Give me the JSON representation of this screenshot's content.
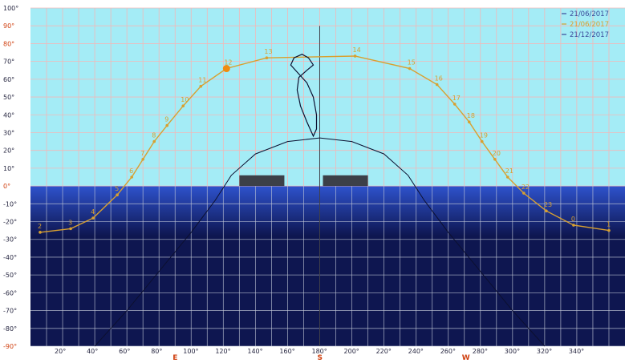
{
  "chart_data": {
    "type": "line",
    "title": "",
    "xlabel": "",
    "ylabel": "",
    "xlim": [
      0,
      370
    ],
    "ylim": [
      -90,
      100
    ],
    "x_ticks": [
      "20°",
      "40°",
      "60°",
      "80°",
      "100°",
      "120°",
      "140°",
      "160°",
      "180°",
      "200°",
      "220°",
      "240°",
      "260°",
      "280°",
      "300°",
      "320°",
      "340°"
    ],
    "y_ticks": [
      "100°",
      "90°",
      "80°",
      "70°",
      "60°",
      "50°",
      "40°",
      "30°",
      "20°",
      "10°",
      "0°",
      "-10°",
      "-20°",
      "-30°",
      "-40°",
      "-50°",
      "-60°",
      "-70°",
      "-80°",
      "-90°"
    ],
    "compass": [
      {
        "label": "E",
        "x": 90
      },
      {
        "label": "S",
        "x": 180
      },
      {
        "label": "W",
        "x": 270
      }
    ],
    "legend": {
      "placement": "top-right",
      "entries": [
        {
          "label": "21/06/2017",
          "color": "#3a4a9a"
        },
        {
          "label": "21/06/2017",
          "color": "#d8a030"
        },
        {
          "label": "21/12/2017",
          "color": "#3a4a9a"
        }
      ]
    },
    "colors": {
      "sky": "#a4ecf6",
      "ground": "#0e1650",
      "horizon_band": "#2e52cc",
      "sun_path": "#d8a030",
      "dark_curve": "#0c1030",
      "grid_sky": "#f2b8b8",
      "grid_ground": "#c4cad8",
      "obstacle": "#3c4048",
      "axis_label": "#262640",
      "highlight_label": "#d04010"
    },
    "series": [
      {
        "color": "#d8a030",
        "points": [
          {
            "x": 6,
            "y": -26,
            "label": "2"
          },
          {
            "x": 25,
            "y": -24,
            "label": "3"
          },
          {
            "x": 39,
            "y": -18,
            "label": "4"
          },
          {
            "x": 54,
            "y": -5,
            "label": "5"
          },
          {
            "x": 63,
            "y": 5,
            "label": "6"
          },
          {
            "x": 70,
            "y": 15,
            "label": "7"
          },
          {
            "x": 77,
            "y": 25,
            "label": "8"
          },
          {
            "x": 85,
            "y": 34,
            "label": "9"
          },
          {
            "x": 95,
            "y": 45,
            "label": "10"
          },
          {
            "x": 106,
            "y": 56,
            "label": "11"
          },
          {
            "x": 122,
            "y": 66,
            "label": "12"
          },
          {
            "x": 147,
            "y": 72,
            "label": "13"
          },
          {
            "x": 202,
            "y": 73,
            "label": "14"
          },
          {
            "x": 236,
            "y": 66,
            "label": "15"
          },
          {
            "x": 253,
            "y": 57,
            "label": "16"
          },
          {
            "x": 264,
            "y": 46,
            "label": "17"
          },
          {
            "x": 273,
            "y": 36,
            "label": "18"
          },
          {
            "x": 281,
            "y": 25,
            "label": "19"
          },
          {
            "x": 289,
            "y": 15,
            "label": "20"
          },
          {
            "x": 297,
            "y": 5,
            "label": "21"
          },
          {
            "x": 307,
            "y": -4,
            "label": "22"
          },
          {
            "x": 321,
            "y": -14,
            "label": "23"
          },
          {
            "x": 338,
            "y": -22,
            "label": "0"
          },
          {
            "x": 360,
            "y": -25,
            "label": "1"
          }
        ]
      },
      {
        "color": "#0c1030",
        "points": [
          {
            "x": 40,
            "y": -90
          },
          {
            "x": 60,
            "y": -70
          },
          {
            "x": 80,
            "y": -48
          },
          {
            "x": 100,
            "y": -26
          },
          {
            "x": 115,
            "y": -8
          },
          {
            "x": 125,
            "y": 6
          },
          {
            "x": 140,
            "y": 18
          },
          {
            "x": 160,
            "y": 25
          },
          {
            "x": 180,
            "y": 27
          },
          {
            "x": 200,
            "y": 25
          },
          {
            "x": 220,
            "y": 18
          },
          {
            "x": 235,
            "y": 6
          },
          {
            "x": 245,
            "y": -8
          },
          {
            "x": 260,
            "y": -26
          },
          {
            "x": 280,
            "y": -48
          },
          {
            "x": 300,
            "y": -70
          },
          {
            "x": 320,
            "y": -90
          }
        ]
      }
    ],
    "current_position": {
      "x": 122,
      "y": 66
    },
    "analemma": [
      {
        "x": 176,
        "y": 28
      },
      {
        "x": 172,
        "y": 36
      },
      {
        "x": 168,
        "y": 45
      },
      {
        "x": 166,
        "y": 54
      },
      {
        "x": 167,
        "y": 61
      },
      {
        "x": 172,
        "y": 65
      },
      {
        "x": 176,
        "y": 68
      },
      {
        "x": 173,
        "y": 72
      },
      {
        "x": 169,
        "y": 74
      },
      {
        "x": 164,
        "y": 72
      },
      {
        "x": 162,
        "y": 68
      },
      {
        "x": 166,
        "y": 64
      },
      {
        "x": 172,
        "y": 58
      },
      {
        "x": 176,
        "y": 50
      },
      {
        "x": 178,
        "y": 40
      },
      {
        "x": 178,
        "y": 32
      },
      {
        "x": 176,
        "y": 28
      }
    ],
    "obstacles": [
      {
        "x_min": 130,
        "x_max": 158,
        "y_min": 0,
        "y_max": 6
      },
      {
        "x_min": 182,
        "x_max": 210,
        "y_min": 0,
        "y_max": 6
      }
    ],
    "meridian_x": 180
  }
}
